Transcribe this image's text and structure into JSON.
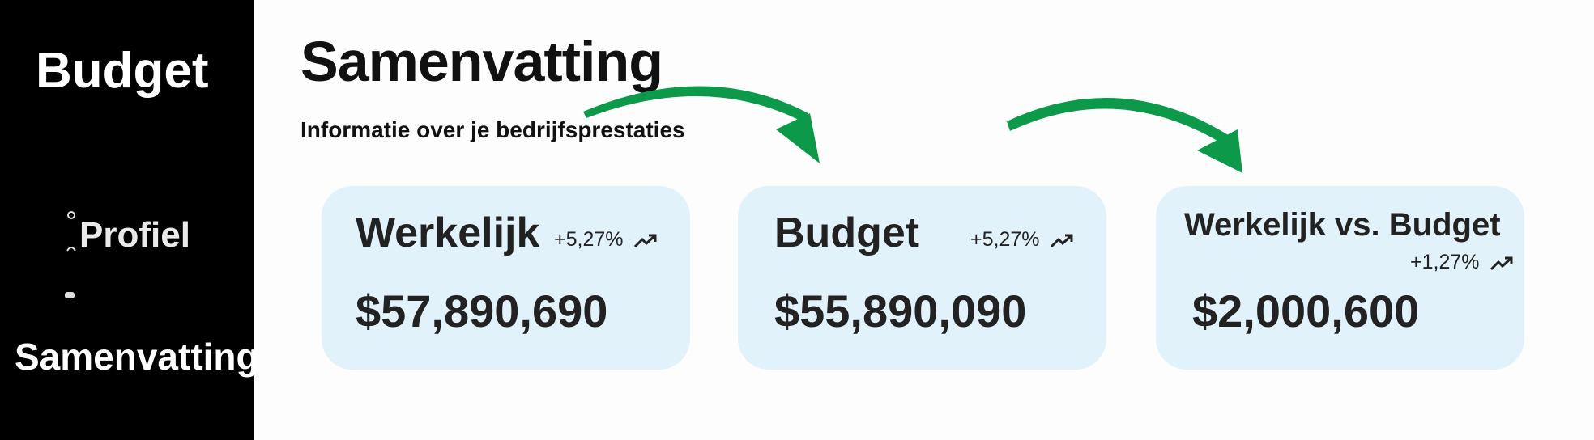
{
  "sidebar": {
    "title": "Budget",
    "items": [
      "Profiel",
      "Samenvatting"
    ]
  },
  "header": {
    "title": "Samenvatting",
    "subtitle": "Informatie over je bedrijfsprestaties"
  },
  "cards": [
    {
      "label": "Werkelijk",
      "change": "+5,27%",
      "value": "$57,890,690"
    },
    {
      "label": "Budget",
      "change": "+5,27%",
      "value": "$55,890,090"
    },
    {
      "label": "Werkelijk vs. Budget",
      "change": "+1,27%",
      "value": "$2,000,600"
    }
  ]
}
